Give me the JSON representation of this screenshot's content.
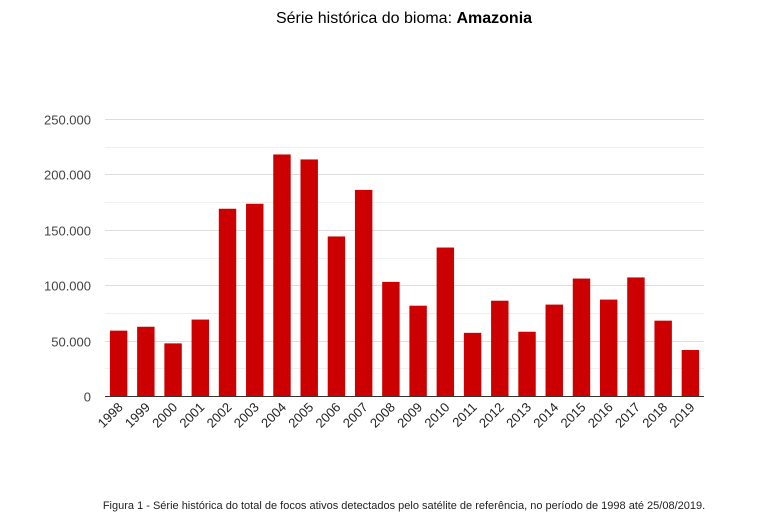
{
  "title": {
    "prefix": "Série histórica do bioma: ",
    "bold": "Amazonia"
  },
  "caption": "Figura 1 - Série histórica do total de focos ativos detectados pelo satélite de referência, no período de 1998 até 25/08/2019.",
  "colors": {
    "bar": "#cc0000",
    "grid": "#dddddd",
    "minor_grid": "#efefef"
  },
  "chart_data": {
    "type": "bar",
    "categories": [
      "1998",
      "1999",
      "2000",
      "2001",
      "2002",
      "2003",
      "2004",
      "2005",
      "2006",
      "2007",
      "2008",
      "2009",
      "2010",
      "2011",
      "2012",
      "2013",
      "2014",
      "2015",
      "2016",
      "2017",
      "2018",
      "2019"
    ],
    "values": [
      59000,
      62500,
      47500,
      69000,
      169000,
      173500,
      218000,
      213500,
      144000,
      186000,
      103000,
      81500,
      134000,
      57000,
      86000,
      58000,
      82500,
      106000,
      87000,
      107000,
      68000,
      41500
    ],
    "ylim": [
      0,
      250000
    ],
    "yticks": [
      0,
      50000,
      100000,
      150000,
      200000,
      250000
    ],
    "ytick_labels": [
      "0",
      "50.000",
      "100.000",
      "150.000",
      "200.000",
      "250.000"
    ],
    "grid": true
  }
}
